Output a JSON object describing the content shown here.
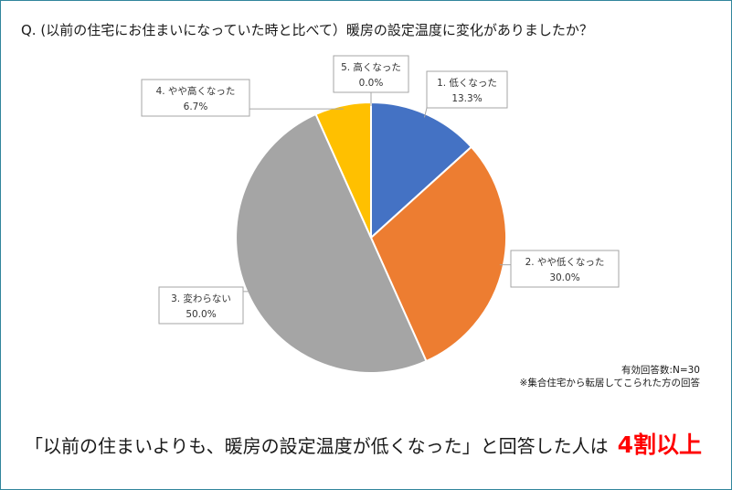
{
  "question": "Q. (以前の住宅にお住まいになっていた時と比べて）暖房の設定温度に変化がありましたか？",
  "notes": {
    "sample": "有効回答数:N=30",
    "subset": "※集合住宅から転居してこられた方の回答"
  },
  "conclusion": {
    "text": "「以前の住まいよりも、暖房の設定温度が低くなった」と回答した人は",
    "highlight": "4割以上",
    "highlight_color": "#ff0000"
  },
  "chart_data": {
    "type": "pie",
    "title": "",
    "categories": [
      "1. 低くなった",
      "2. やや低くなった",
      "3. 変わらない",
      "4. やや高くなった",
      "5. 高くなった"
    ],
    "values": [
      13.3,
      30.0,
      50.0,
      6.7,
      0.0
    ],
    "labels": [
      "13.3%",
      "30.0%",
      "50.0%",
      "6.7%",
      "0.0%"
    ],
    "colors": [
      "#4472c4",
      "#ed7d31",
      "#a5a5a5",
      "#ffc000",
      "#5b9bd5"
    ]
  }
}
